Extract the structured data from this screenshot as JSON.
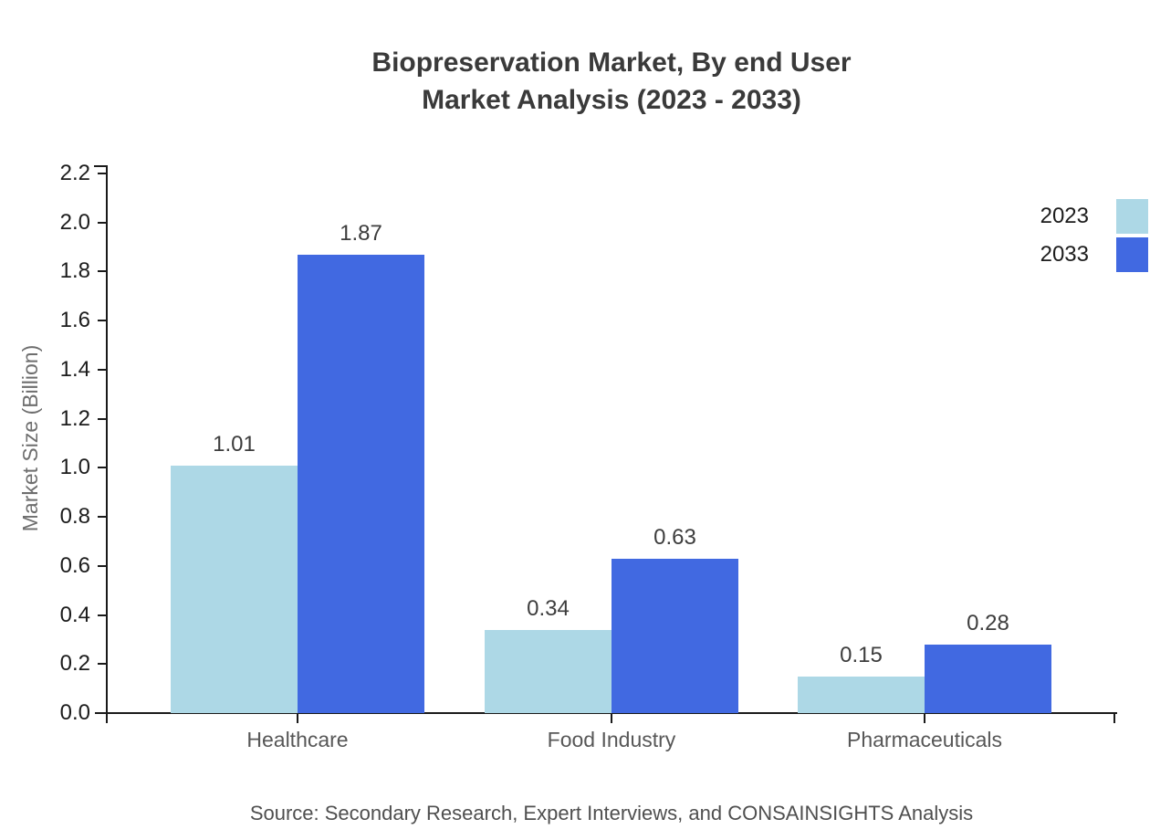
{
  "title": {
    "line1": "Biopreservation Market, By end User",
    "line2": "Market Analysis (2023 - 2033)"
  },
  "source": "Source: Secondary Research, Expert Interviews, and CONSAINSIGHTS Analysis",
  "chart_data": {
    "type": "bar",
    "categories": [
      "Healthcare",
      "Food Industry",
      "Pharmaceuticals"
    ],
    "series": [
      {
        "name": "2023",
        "color": "#ADD8E6",
        "values": [
          1.01,
          0.34,
          0.15
        ]
      },
      {
        "name": "2033",
        "color": "#4169E1",
        "values": [
          1.87,
          0.63,
          0.28
        ]
      }
    ],
    "title": "Biopreservation Market, By end User Market Analysis (2023 - 2033)",
    "xlabel": "",
    "ylabel": "Market Size (Billion)",
    "ylim": [
      0.0,
      2.2
    ],
    "yticks": [
      0.0,
      0.2,
      0.4,
      0.6,
      0.8,
      1.0,
      1.2,
      1.4,
      1.6,
      1.8,
      2.0,
      2.2
    ],
    "grid": false,
    "value_labels": true,
    "legend_position": "top-right",
    "legend_entries": [
      "2023",
      "2033"
    ]
  },
  "colors": {
    "series_2023": "#ADD8E6",
    "series_2033": "#4169E1",
    "axis": "#1a1a1a",
    "title_text": "#3a3a3a",
    "category_text": "#575757",
    "ylabel_text": "#6e6e6e",
    "source_text": "#4f4f4f"
  }
}
